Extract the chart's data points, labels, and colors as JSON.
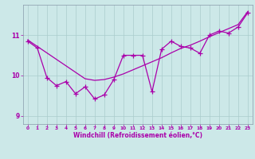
{
  "xlabel": "Windchill (Refroidissement éolien,°C)",
  "background_color": "#cce8e8",
  "line_color": "#aa00aa",
  "grid_color": "#aacccc",
  "spine_color": "#8899aa",
  "x_data": [
    0,
    1,
    2,
    3,
    4,
    5,
    6,
    7,
    8,
    9,
    10,
    11,
    12,
    13,
    14,
    15,
    16,
    17,
    18,
    19,
    20,
    21,
    22,
    23
  ],
  "y_zigzag": [
    10.85,
    10.68,
    9.95,
    9.75,
    9.85,
    9.55,
    9.72,
    9.42,
    9.52,
    9.9,
    10.5,
    10.5,
    10.5,
    9.6,
    10.65,
    10.85,
    10.72,
    10.68,
    10.55,
    11.0,
    11.1,
    11.05,
    11.2,
    11.55
  ],
  "y_trend": [
    10.88,
    10.72,
    10.56,
    10.4,
    10.24,
    10.08,
    9.92,
    9.88,
    9.9,
    9.96,
    10.04,
    10.14,
    10.24,
    10.34,
    10.44,
    10.56,
    10.67,
    10.75,
    10.85,
    10.96,
    11.06,
    11.16,
    11.26,
    11.58
  ],
  "ylim": [
    8.8,
    11.75
  ],
  "yticks": [
    9,
    10,
    11
  ],
  "xlim": [
    -0.5,
    23.5
  ],
  "xticks": [
    0,
    1,
    2,
    3,
    4,
    5,
    6,
    7,
    8,
    9,
    10,
    11,
    12,
    13,
    14,
    15,
    16,
    17,
    18,
    19,
    20,
    21,
    22,
    23
  ]
}
